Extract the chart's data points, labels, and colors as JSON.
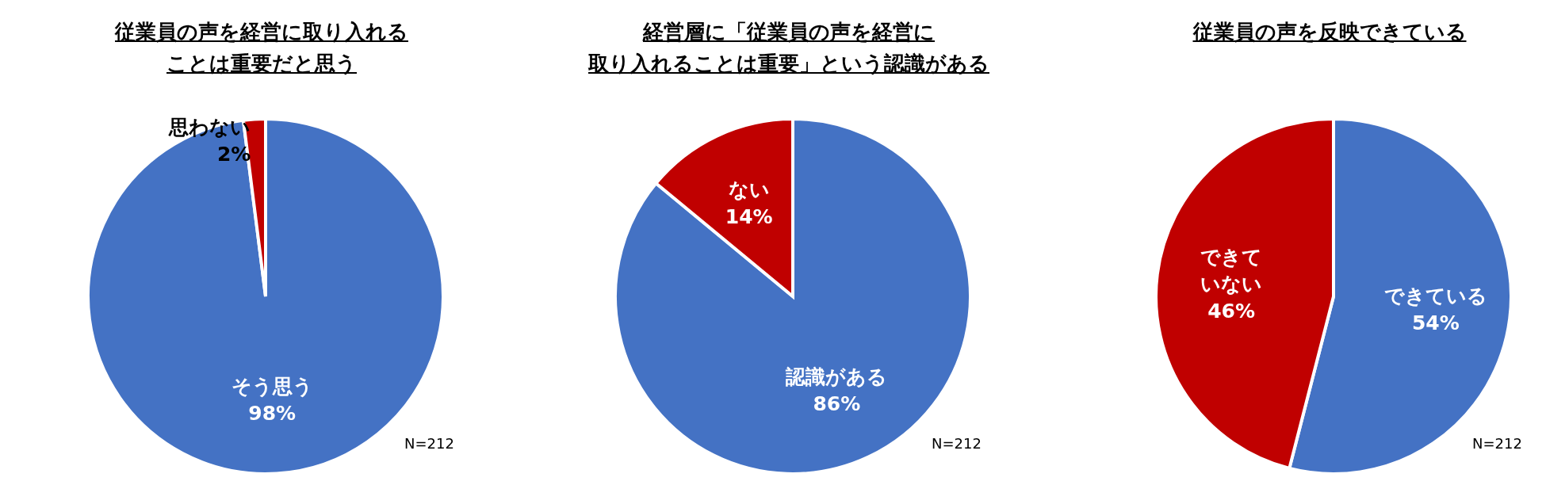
{
  "chart_data": [
    {
      "type": "pie",
      "title": "従業員の声を経営に取り入れることは重要だと思う",
      "categories": [
        "そう思う",
        "思わない"
      ],
      "values": [
        98,
        2
      ],
      "value_labels": [
        "98%",
        "2%"
      ],
      "colors": [
        "#4472c4",
        "#c00000"
      ],
      "annotations": [
        "N=212"
      ]
    },
    {
      "type": "pie",
      "title": "経営層に「従業員の声を経営に取り入れることは重要」という認識がある",
      "categories": [
        "認識がある",
        "ない"
      ],
      "values": [
        86,
        14
      ],
      "value_labels": [
        "86%",
        "14%"
      ],
      "colors": [
        "#4472c4",
        "#c00000"
      ],
      "annotations": [
        "N=212"
      ]
    },
    {
      "type": "pie",
      "title": "従業員の声を反映できている",
      "categories": [
        "できている",
        "できていない"
      ],
      "values": [
        54,
        46
      ],
      "value_labels": [
        "54%",
        "46%"
      ],
      "colors": [
        "#4472c4",
        "#c00000"
      ],
      "annotations": [
        "N=212"
      ]
    }
  ]
}
